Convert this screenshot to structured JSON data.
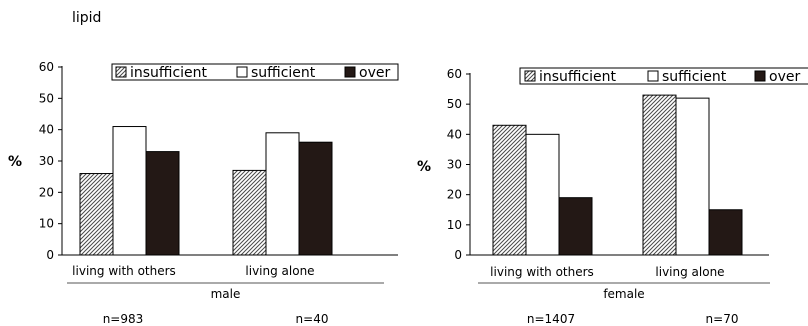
{
  "colors": {
    "insufficient_fill": "#ffffff",
    "insufficient_hatch": "#4a4a4a",
    "sufficient": "#ffffff",
    "over": "#231815",
    "axis": "#000000"
  },
  "chart_data": [
    {
      "type": "bar",
      "title": "lipid",
      "ylabel": "%",
      "ylim": [
        0,
        60
      ],
      "yticks": [
        "0",
        "10",
        "20",
        "30",
        "40",
        "50",
        "60"
      ],
      "categories": [
        "living with others",
        "living alone"
      ],
      "group_label": "male",
      "n_labels": [
        "n=983",
        "n=40"
      ],
      "legend": [
        "insufficient",
        "sufficient",
        "over"
      ],
      "series": [
        {
          "name": "insufficient",
          "values": [
            26,
            27
          ]
        },
        {
          "name": "sufficient",
          "values": [
            41,
            39
          ]
        },
        {
          "name": "over",
          "values": [
            33,
            36
          ]
        }
      ]
    },
    {
      "type": "bar",
      "ylabel": "%",
      "ylim": [
        0,
        60
      ],
      "yticks": [
        "0",
        "10",
        "20",
        "30",
        "40",
        "50",
        "60"
      ],
      "categories": [
        "living with others",
        "living alone"
      ],
      "group_label": "female",
      "n_labels": [
        "n=1407",
        "n=70"
      ],
      "legend": [
        "insufficient",
        "sufficient",
        "over"
      ],
      "series": [
        {
          "name": "insufficient",
          "values": [
            43,
            53
          ]
        },
        {
          "name": "sufficient",
          "values": [
            40,
            52
          ]
        },
        {
          "name": "over",
          "values": [
            19,
            15
          ]
        }
      ]
    }
  ]
}
